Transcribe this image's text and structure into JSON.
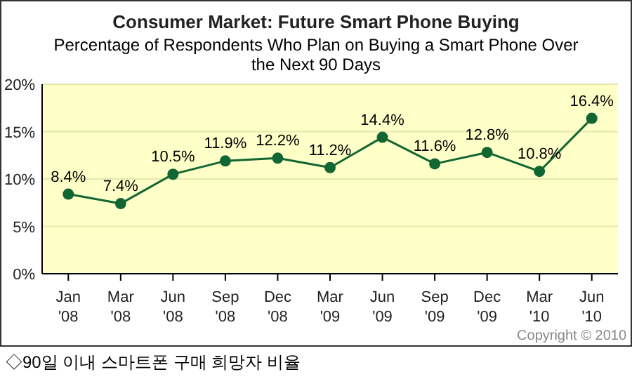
{
  "chart_data": {
    "type": "line",
    "title": "Consumer Market: Future Smart Phone Buying",
    "subtitle": "Percentage of Respondents Who Plan on Buying a Smart Phone Over the Next 90 Days",
    "categories": [
      "Jan '08",
      "Mar '08",
      "Jun '08",
      "Sep '08",
      "Dec '08",
      "Mar '09",
      "Jun '09",
      "Sep '09",
      "Dec '09",
      "Mar '10",
      "Jun '10"
    ],
    "series": [
      {
        "color": "#116633",
        "values": [
          8.4,
          7.4,
          10.5,
          11.9,
          12.2,
          11.2,
          14.4,
          11.6,
          12.8,
          10.8,
          16.4
        ]
      }
    ],
    "value_labels": [
      "8.4%",
      "7.4%",
      "10.5%",
      "11.9%",
      "12.2%",
      "11.2%",
      "14.4%",
      "11.6%",
      "12.8%",
      "10.8%",
      "16.4%"
    ],
    "ylim": [
      0,
      20
    ],
    "yticks": [
      {
        "value": 0,
        "label": "0%"
      },
      {
        "value": 5,
        "label": "5%"
      },
      {
        "value": 10,
        "label": "10%"
      },
      {
        "value": 15,
        "label": "15%"
      },
      {
        "value": 20,
        "label": "20%"
      }
    ],
    "grid": "y",
    "marker": "circle",
    "line_style": "solid",
    "annotations": [
      "Copyright © 2010",
      "◇90일 이내 스마트폰 구매 희망자 비율"
    ]
  }
}
